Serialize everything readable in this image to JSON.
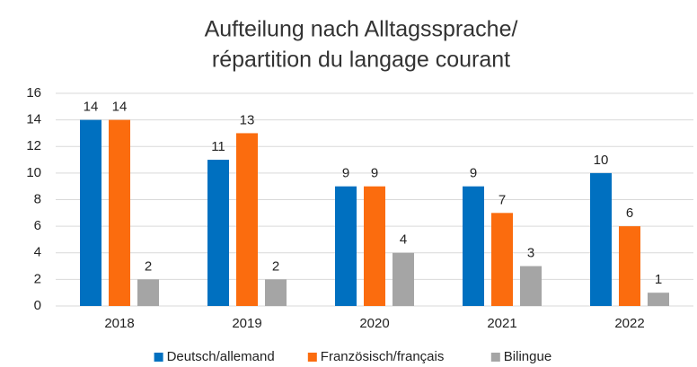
{
  "chart_data": {
    "type": "bar",
    "title": [
      "Aufteilung nach Alltagssprache/",
      "répartition du langage courant"
    ],
    "categories": [
      "2018",
      "2019",
      "2020",
      "2021",
      "2022"
    ],
    "series": [
      {
        "name": "Deutsch/allemand",
        "color": "#0070c0",
        "values": [
          14,
          11,
          9,
          9,
          10
        ]
      },
      {
        "name": "Französisch/français",
        "color": "#fb6c0e",
        "values": [
          14,
          13,
          9,
          7,
          6
        ]
      },
      {
        "name": "Bilingue",
        "color": "#a5a5a5",
        "values": [
          2,
          2,
          4,
          3,
          1
        ]
      }
    ],
    "ylim": [
      0,
      16
    ],
    "yticks": [
      0,
      2,
      4,
      6,
      8,
      10,
      12,
      14,
      16
    ],
    "grid": true,
    "legend": "bottom"
  }
}
